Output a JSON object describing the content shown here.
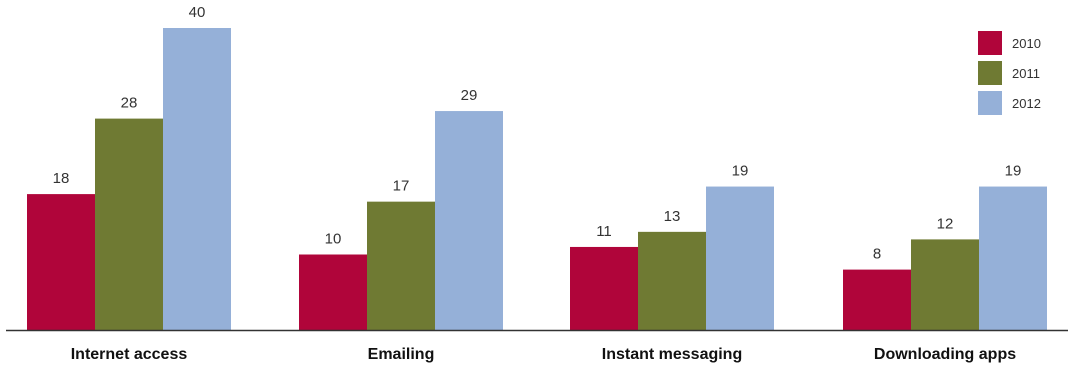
{
  "chart_data": {
    "type": "bar",
    "title": "",
    "xlabel": "",
    "ylabel": "",
    "categories": [
      "Internet access",
      "Emailing",
      "Instant messaging",
      "Downloading apps"
    ],
    "series": [
      {
        "name": "2010",
        "color": "#b0053a",
        "values": [
          18,
          10,
          11,
          8
        ]
      },
      {
        "name": "2011",
        "color": "#6f7a33",
        "values": [
          28,
          17,
          13,
          12
        ]
      },
      {
        "name": "2012",
        "color": "#95b0d8",
        "values": [
          40,
          29,
          19,
          19
        ]
      }
    ],
    "ylim": [
      0,
      40
    ],
    "grid": false,
    "legend_position": "top-right",
    "data_labels": true,
    "axis_color": "#333333"
  }
}
